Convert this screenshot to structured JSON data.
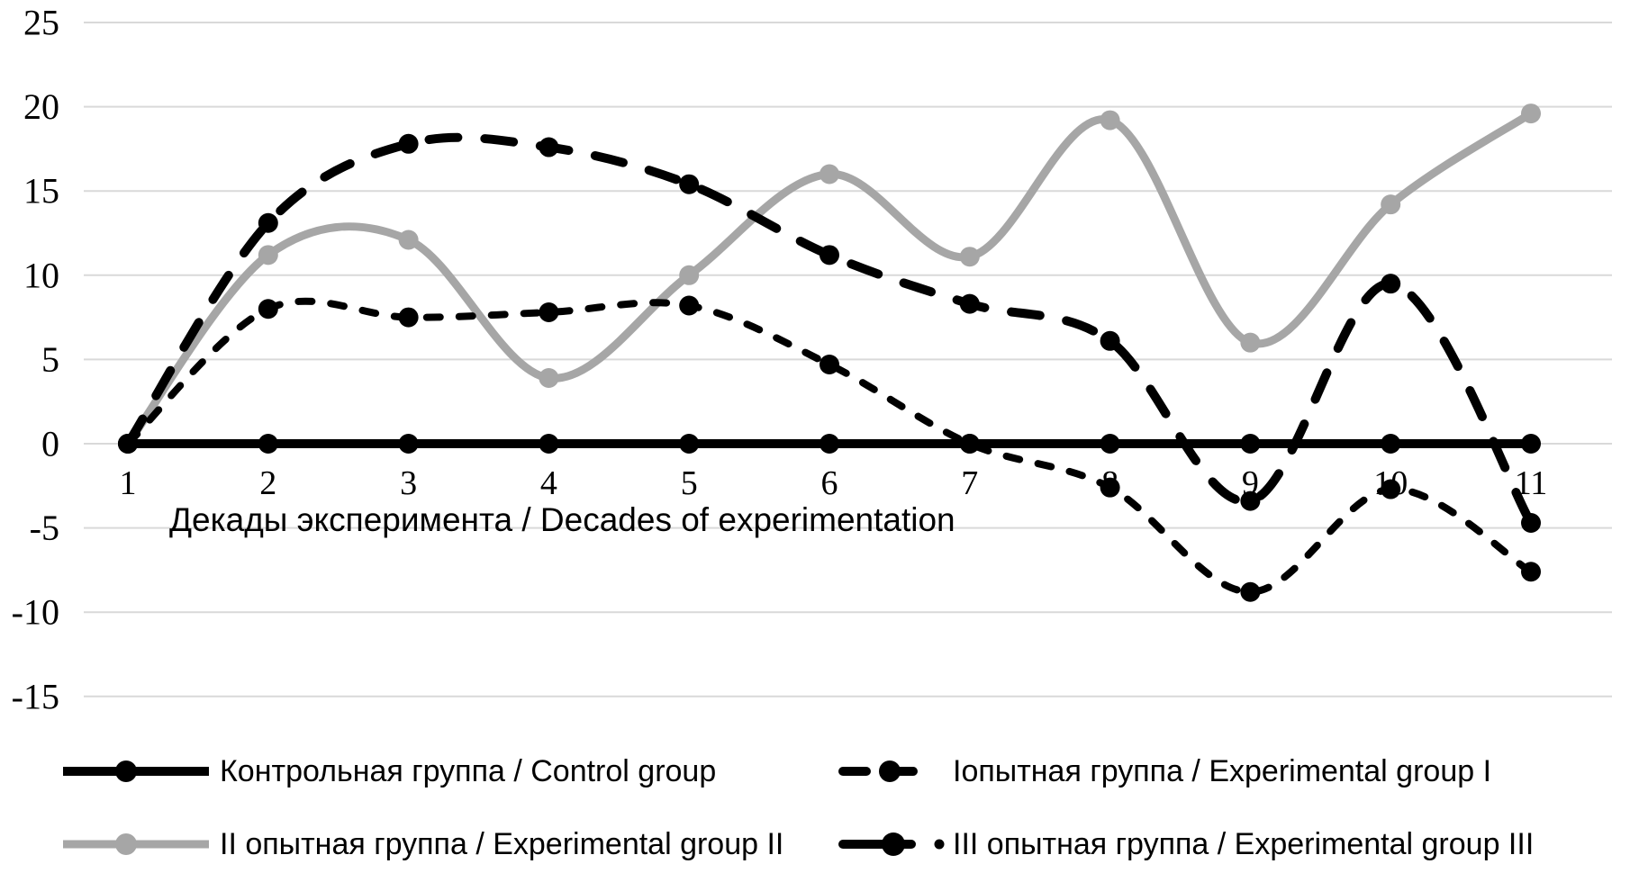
{
  "chart_data": {
    "type": "line",
    "title": "",
    "xlabel": "Декады эксперимента / Decades of experimentation",
    "ylabel": "",
    "x": [
      1,
      2,
      3,
      4,
      5,
      6,
      7,
      8,
      9,
      10,
      11
    ],
    "xtick_labels": [
      "1",
      "2",
      "3",
      "4",
      "5",
      "6",
      "7",
      "8",
      "9",
      "10",
      "11"
    ],
    "yticks": [
      25,
      20,
      15,
      10,
      5,
      0,
      -5,
      -10,
      -15
    ],
    "ylim": [
      -15,
      25
    ],
    "grid": true,
    "smooth": true,
    "markers": true,
    "legend_position": "bottom",
    "series": [
      {
        "id": "control-group",
        "name": "Контрольная группа / Control group",
        "color": "#000000",
        "style": "solid",
        "values": [
          0,
          0,
          0,
          0,
          0,
          0,
          0,
          0,
          0,
          0,
          0
        ]
      },
      {
        "id": "experimental-group-1",
        "name": "Iопытная группа / Experimental group I",
        "color": "#000000",
        "style": "dashed",
        "values": [
          0,
          13.1,
          17.8,
          17.6,
          15.4,
          11.2,
          8.3,
          6.1,
          -3.4,
          9.5,
          -4.7
        ]
      },
      {
        "id": "experimental-group-2",
        "name": "II опытная группа / Experimental group II",
        "color": "#a6a6a6",
        "style": "solid",
        "values": [
          0,
          11.2,
          12.1,
          3.9,
          10.0,
          16.0,
          11.1,
          19.2,
          6.0,
          14.2,
          19.6
        ]
      },
      {
        "id": "experimental-group-3",
        "name": "III опытная группа / Experimental group III",
        "color": "#000000",
        "style": "dash-dot",
        "legend_prefix_dot": "•",
        "values": [
          0,
          8.0,
          7.5,
          7.8,
          8.2,
          4.7,
          0.0,
          -2.6,
          -8.8,
          -2.7,
          -7.6
        ]
      }
    ]
  },
  "colors": {
    "background": "#ffffff",
    "gridline": "#d9d9d9",
    "text": "#000000",
    "gray_series": "#a6a6a6"
  }
}
